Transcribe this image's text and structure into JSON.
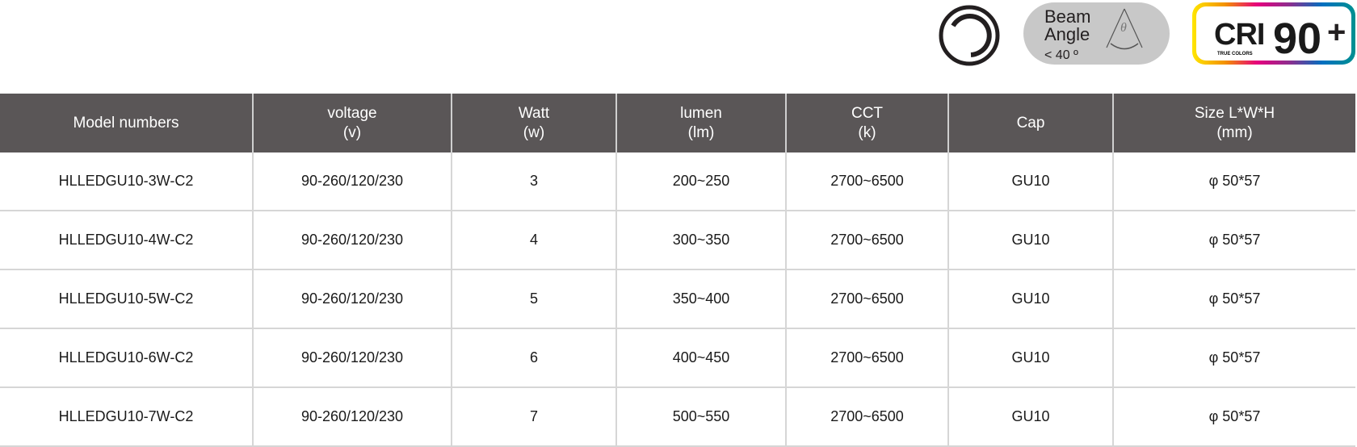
{
  "badges": {
    "dimmable": {
      "icon": "dimmable-icon"
    },
    "beam": {
      "line1": "Beam",
      "line2": "Angle",
      "angle": "< 40 º",
      "symbol": "θ"
    },
    "cri": {
      "label": "CRI",
      "sub": "TRUE COLORS",
      "value": "90",
      "plus": "+"
    }
  },
  "colors": {
    "header_bg": "#5a5657",
    "grid": "#d6d6d6"
  },
  "table": {
    "headers": [
      {
        "l1": "Model numbers",
        "l2": ""
      },
      {
        "l1": "voltage",
        "l2": "(v)"
      },
      {
        "l1": "Watt",
        "l2": "(w)"
      },
      {
        "l1": "lumen",
        "l2": "(lm)"
      },
      {
        "l1": "CCT",
        "l2": "(k)"
      },
      {
        "l1": "Cap",
        "l2": ""
      },
      {
        "l1": "Size L*W*H",
        "l2": "(mm)"
      }
    ],
    "rows": [
      [
        "HLLEDGU10-3W-C2",
        "90-260/120/230",
        "3",
        "200~250",
        "2700~6500",
        "GU10",
        "φ 50*57"
      ],
      [
        "HLLEDGU10-4W-C2",
        "90-260/120/230",
        "4",
        "300~350",
        "2700~6500",
        "GU10",
        "φ 50*57"
      ],
      [
        "HLLEDGU10-5W-C2",
        "90-260/120/230",
        "5",
        "350~400",
        "2700~6500",
        "GU10",
        "φ 50*57"
      ],
      [
        "HLLEDGU10-6W-C2",
        "90-260/120/230",
        "6",
        "400~450",
        "2700~6500",
        "GU10",
        "φ 50*57"
      ],
      [
        "HLLEDGU10-7W-C2",
        "90-260/120/230",
        "7",
        "500~550",
        "2700~6500",
        "GU10",
        "φ 50*57"
      ]
    ]
  }
}
